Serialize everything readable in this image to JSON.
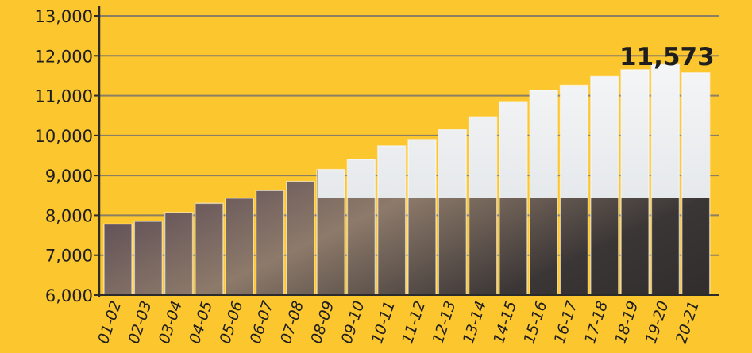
{
  "chart_data": {
    "type": "bar",
    "categories": [
      "01-02",
      "02-03",
      "03-04",
      "04-05",
      "05-06",
      "06-07",
      "07-08",
      "08-09",
      "09-10",
      "10-11",
      "11-12",
      "12-13",
      "13-14",
      "14-15",
      "15-16",
      "16-17",
      "17-18",
      "18-19",
      "19-20",
      "20-21"
    ],
    "values": [
      7780,
      7850,
      8070,
      8300,
      8430,
      8620,
      8850,
      9150,
      9400,
      9740,
      9900,
      10150,
      10470,
      10850,
      11130,
      11260,
      11480,
      11650,
      11780,
      11573
    ],
    "ylim": [
      6000,
      13000
    ],
    "yticks": [
      6000,
      7000,
      8000,
      9000,
      10000,
      11000,
      12000,
      13000
    ],
    "ytick_labels": [
      "6,000",
      "7,000",
      "8,000",
      "9,000",
      "10,000",
      "11,000",
      "12,000",
      "13,000"
    ],
    "callout": {
      "category": "20-21",
      "text": "11,573"
    },
    "grid": true,
    "colors": {
      "background": "#fcc62f",
      "grid": "#8a7f63",
      "bar": "#ffffff"
    }
  }
}
